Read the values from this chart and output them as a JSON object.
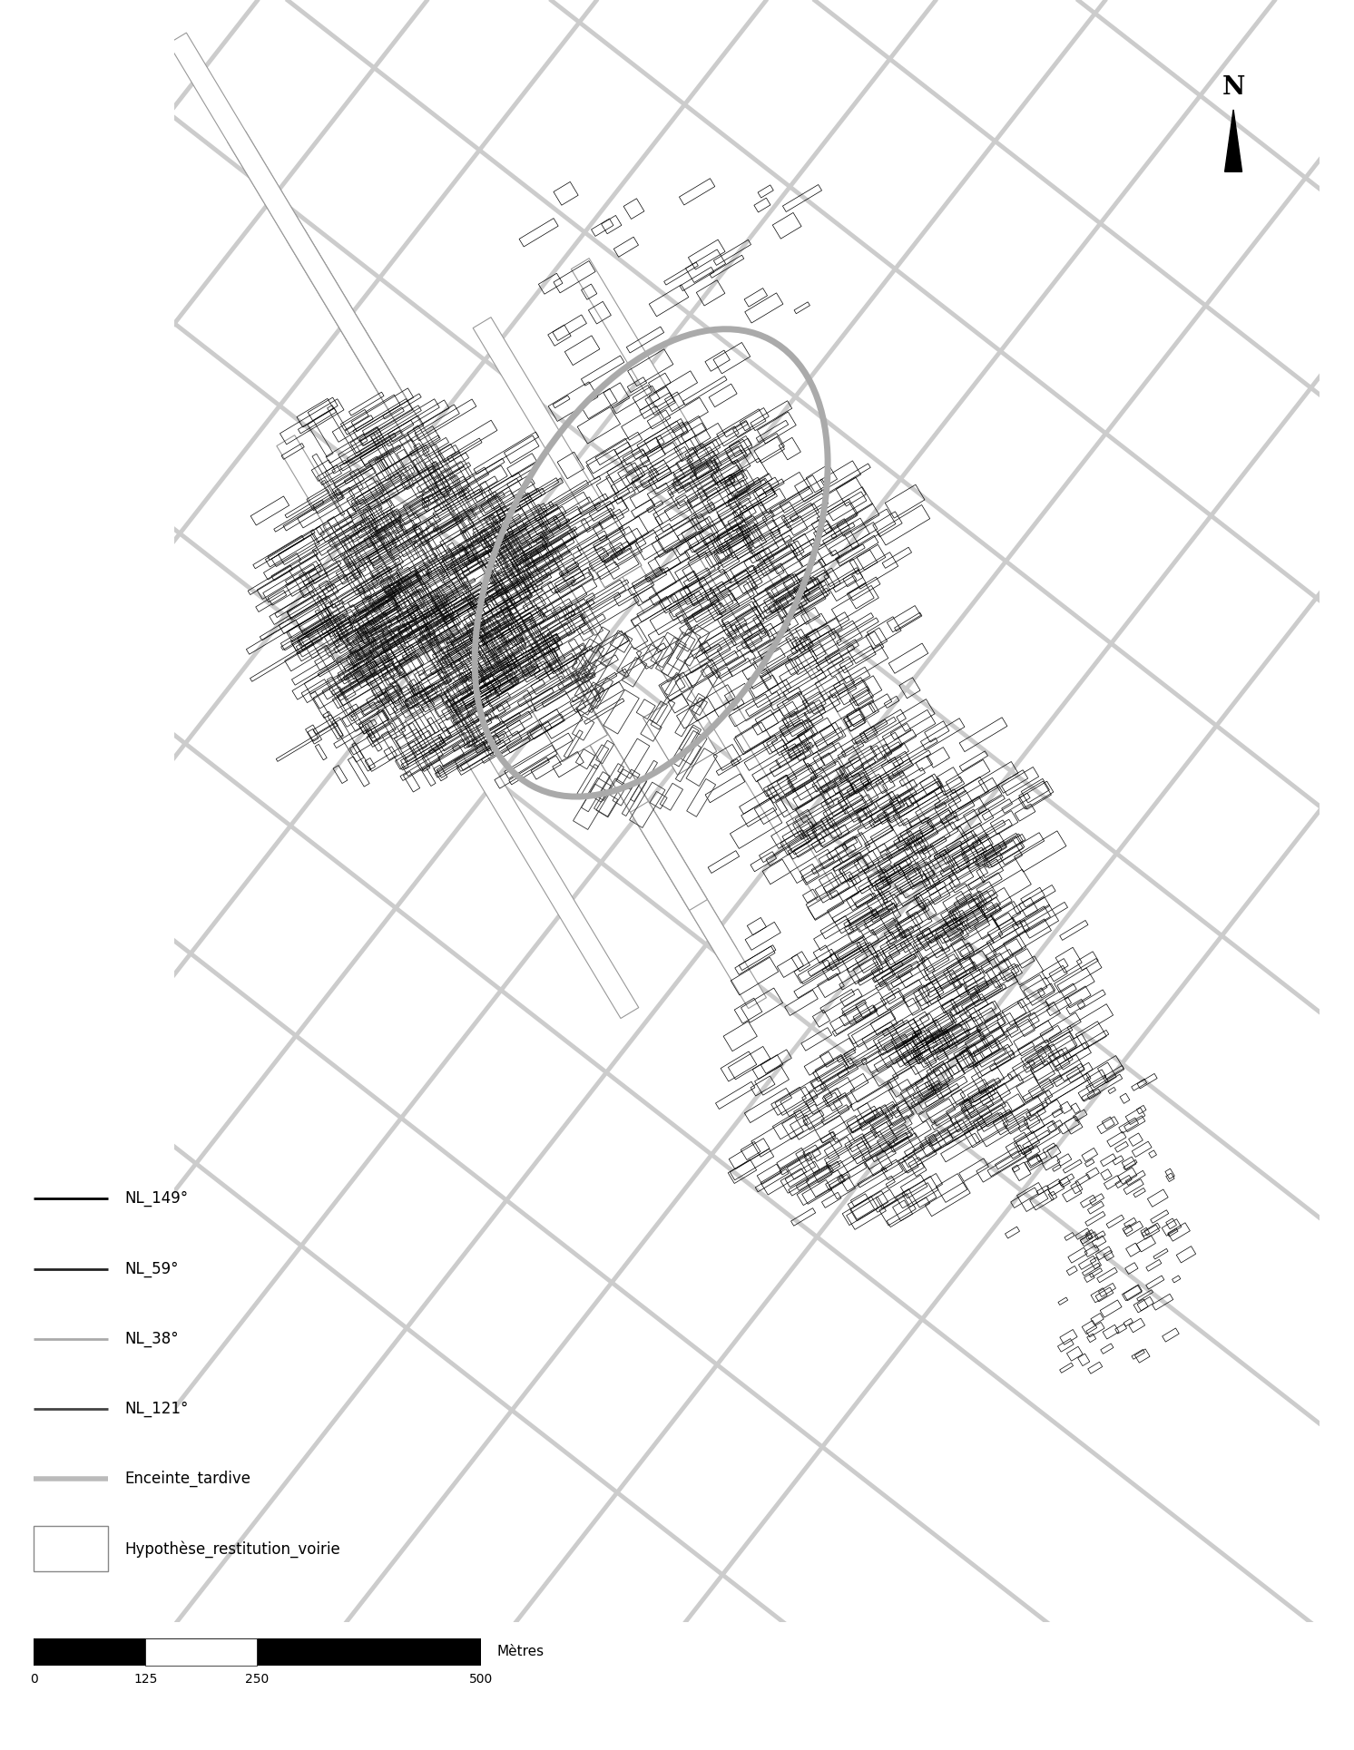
{
  "title": "",
  "legend_labels": [
    "NL_149°",
    "NL_59°",
    "NL_38°",
    "NL_121°",
    "Enceinte_tardive",
    "Hypothèse_restitution_voirie"
  ],
  "legend_colors": [
    "#000000",
    "#222222",
    "#aaaaaa",
    "#333333",
    "#bbbbbb",
    "#ffffff"
  ],
  "scalebar_ticks": [
    0,
    125,
    250,
    500
  ],
  "scalebar_label": "Mètres",
  "north_label": "N",
  "background_color": "#ffffff",
  "map_color": "#000000",
  "road_color": "#cccccc",
  "enclosure_color": "#bbbbbb",
  "ang_149": -59,
  "ang_59": 31,
  "ang_38": 52,
  "ang_121": -31
}
